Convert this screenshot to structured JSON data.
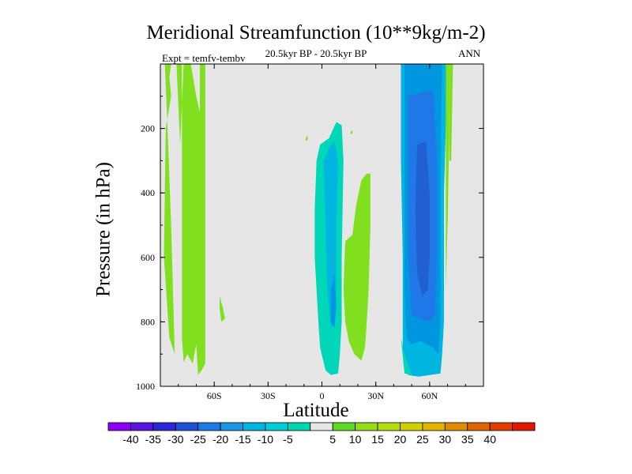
{
  "chart_data": {
    "type": "contour",
    "title": "Meridional Streamfunction (10**9kg/m-2)",
    "subtitle": "20.5kyr BP - 20.5kyr BP",
    "experiment": "Expt = temfv-tembv",
    "season": "ANN",
    "xlabel": "Latitude",
    "ylabel": "Pressure (in hPa)",
    "xlim": [
      -90,
      90
    ],
    "ylim": [
      1000,
      0
    ],
    "x_ticks": [
      {
        "value": -60,
        "label": "60S"
      },
      {
        "value": -30,
        "label": "30S"
      },
      {
        "value": 0,
        "label": "0"
      },
      {
        "value": 30,
        "label": "30N"
      },
      {
        "value": 60,
        "label": "60N"
      }
    ],
    "y_ticks": [
      {
        "value": 200,
        "label": "200"
      },
      {
        "value": 400,
        "label": "400"
      },
      {
        "value": 600,
        "label": "600"
      },
      {
        "value": 800,
        "label": "800"
      },
      {
        "value": 1000,
        "label": "1000"
      }
    ],
    "background_color": "#e6e6e6",
    "regions": [
      {
        "name": "sh-polar-positive",
        "level": "5 to 10",
        "color": "#80e020",
        "outline": [
          [
            -87.5,
            0
          ],
          [
            -78,
            0
          ],
          [
            -78,
            850
          ],
          [
            -77,
            925
          ],
          [
            -75,
            900
          ],
          [
            -72,
            930
          ],
          [
            -70,
            870
          ],
          [
            -69,
            965
          ],
          [
            -67,
            950
          ],
          [
            -65,
            930
          ],
          [
            -65,
            0
          ],
          [
            -68,
            0
          ],
          [
            -68,
            150
          ],
          [
            -70,
            100
          ],
          [
            -73,
            0
          ],
          [
            -77,
            0
          ],
          [
            -79,
            250
          ],
          [
            -81,
            0
          ],
          [
            -84,
            0
          ],
          [
            -85,
            40
          ],
          [
            -84,
            100
          ],
          [
            -87,
            200
          ],
          [
            -88,
            600
          ],
          [
            -85,
            850
          ],
          [
            -82,
            900
          ],
          [
            -84,
            500
          ],
          [
            -86,
            200
          ]
        ]
      },
      {
        "name": "sh-midlat-positive",
        "level": "5 to 10",
        "color": "#80e020",
        "outline": [
          [
            -57,
            720
          ],
          [
            -55,
            760
          ],
          [
            -54,
            790
          ],
          [
            -56,
            800
          ],
          [
            -57,
            760
          ]
        ]
      },
      {
        "name": "sh-upper-positive",
        "level": "5 to 10",
        "color": "#80e020",
        "outline": [
          [
            -9,
            230
          ],
          [
            -8,
            220
          ],
          [
            -8,
            235
          ],
          [
            -9,
            240
          ]
        ]
      },
      {
        "name": "tropical-negative",
        "level": "-10 to -5",
        "color": "#00d6b8",
        "outline": [
          [
            -4,
            450
          ],
          [
            -3,
            300
          ],
          [
            -1,
            250
          ],
          [
            4,
            230
          ],
          [
            8,
            180
          ],
          [
            11,
            190
          ],
          [
            12,
            300
          ],
          [
            11,
            600
          ],
          [
            11,
            800
          ],
          [
            10,
            900
          ],
          [
            9,
            960
          ],
          [
            5,
            965
          ],
          [
            2,
            950
          ],
          [
            -1,
            880
          ],
          [
            -2,
            800
          ],
          [
            -3,
            700
          ],
          [
            -4,
            600
          ]
        ]
      },
      {
        "name": "tropical-negative-core",
        "level": "-15 to -10",
        "color": "#00b6e0",
        "outline": [
          [
            1,
            300
          ],
          [
            4,
            260
          ],
          [
            7,
            240
          ],
          [
            9,
            300
          ],
          [
            8,
            500
          ],
          [
            8,
            700
          ],
          [
            7,
            800
          ],
          [
            5,
            820
          ],
          [
            3,
            700
          ],
          [
            2,
            500
          ]
        ]
      },
      {
        "name": "tropical-negative-inner",
        "level": "-20 to -15",
        "color": "#0096e0",
        "outline": [
          [
            5,
            700
          ],
          [
            7,
            650
          ],
          [
            8,
            750
          ],
          [
            7,
            820
          ],
          [
            5,
            800
          ]
        ]
      },
      {
        "name": "nh-upper-positive",
        "level": "5 to 10",
        "color": "#80e020",
        "outline": [
          [
            16,
            210
          ],
          [
            17,
            205
          ],
          [
            17,
            215
          ],
          [
            16,
            218
          ]
        ]
      },
      {
        "name": "nh-subtropical-positive",
        "level": "5 to 10",
        "color": "#80e020",
        "outline": [
          [
            13,
            550
          ],
          [
            15,
            540
          ],
          [
            17,
            530
          ],
          [
            19,
            440
          ],
          [
            22,
            360
          ],
          [
            25,
            340
          ],
          [
            27,
            340
          ],
          [
            27,
            500
          ],
          [
            26,
            700
          ],
          [
            25,
            800
          ],
          [
            24,
            880
          ],
          [
            22,
            920
          ],
          [
            18,
            900
          ],
          [
            15,
            860
          ],
          [
            13,
            800
          ],
          [
            12,
            700
          ]
        ]
      },
      {
        "name": "nh-midlat-negative",
        "level": "-15 to -10",
        "color": "#00b6e0",
        "outline": [
          [
            44,
            0
          ],
          [
            70,
            0
          ],
          [
            68,
            400
          ],
          [
            68,
            800
          ],
          [
            67,
            900
          ],
          [
            66,
            960
          ],
          [
            60,
            965
          ],
          [
            54,
            970
          ],
          [
            48,
            965
          ],
          [
            45,
            900
          ],
          [
            45,
            600
          ],
          [
            44,
            300
          ]
        ]
      },
      {
        "name": "nh-midlat-negative-1",
        "level": "-20 to -15",
        "color": "#0096e0",
        "outline": [
          [
            46,
            0
          ],
          [
            67,
            0
          ],
          [
            66,
            300
          ],
          [
            66,
            600
          ],
          [
            66,
            800
          ],
          [
            65,
            900
          ],
          [
            62,
            880
          ],
          [
            55,
            860
          ],
          [
            50,
            870
          ],
          [
            47,
            850
          ],
          [
            46,
            700
          ],
          [
            46,
            300
          ]
        ]
      },
      {
        "name": "nh-midlat-negative-2",
        "level": "-25 to -20",
        "color": "#2078e8",
        "outline": [
          [
            48,
            100
          ],
          [
            62,
            80
          ],
          [
            64,
            300
          ],
          [
            64,
            600
          ],
          [
            63,
            780
          ],
          [
            60,
            800
          ],
          [
            55,
            790
          ],
          [
            50,
            780
          ],
          [
            48,
            600
          ],
          [
            48,
            300
          ]
        ]
      },
      {
        "name": "nh-midlat-negative-core",
        "level": "-30 to -25",
        "color": "#2060d0",
        "outline": [
          [
            53,
            250
          ],
          [
            58,
            240
          ],
          [
            60,
            400
          ],
          [
            60,
            600
          ],
          [
            59,
            700
          ],
          [
            56,
            720
          ],
          [
            53,
            650
          ],
          [
            52,
            450
          ]
        ]
      },
      {
        "name": "nh-lowerleft-negative",
        "level": "-10 to -5",
        "color": "#00d6b8",
        "outline": [
          [
            44,
            850
          ],
          [
            46,
            900
          ],
          [
            50,
            965
          ],
          [
            46,
            960
          ]
        ]
      },
      {
        "name": "nh-polar-positive",
        "level": "5 to 10",
        "color": "#80e020",
        "outline": [
          [
            69,
            0
          ],
          [
            71,
            0
          ],
          [
            71,
            200
          ],
          [
            70,
            500
          ],
          [
            69,
            700
          ],
          [
            69,
            500
          ]
        ]
      },
      {
        "name": "nh-polar-positive-2",
        "level": "5 to 10",
        "color": "#80e020",
        "outline": [
          [
            71,
            0
          ],
          [
            73,
            0
          ],
          [
            72,
            300
          ],
          [
            71,
            300
          ]
        ]
      }
    ],
    "colorbar": {
      "colors": [
        "#8a00f0",
        "#5a14e0",
        "#2a28d6",
        "#1f50d8",
        "#1e78e8",
        "#1896e8",
        "#00b6e0",
        "#00cdd6",
        "#00d6b0",
        "#e6e6e6",
        "#60d828",
        "#94dc18",
        "#b4dc10",
        "#d0d000",
        "#e0b400",
        "#e08c00",
        "#e06400",
        "#e03c00",
        "#e01800"
      ],
      "labels": [
        "-40",
        "-35",
        "-30",
        "-25",
        "-20",
        "-15",
        "-10",
        "-5",
        "5",
        "10",
        "15",
        "20",
        "25",
        "30",
        "35",
        "40"
      ]
    }
  }
}
